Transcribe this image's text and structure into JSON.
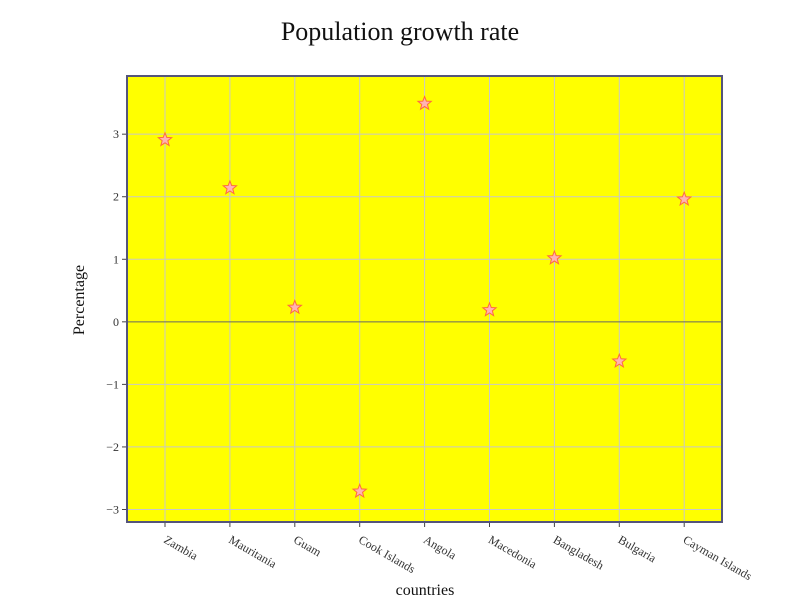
{
  "chart_data": {
    "type": "scatter",
    "title": "Population growth rate",
    "xlabel": "countries",
    "ylabel": "Percentage",
    "categories": [
      "Zambia",
      "Mauritania",
      "Guam",
      "Cook Islands",
      "Angola",
      "Macedonia",
      "Bangladesh",
      "Bulgaria",
      "Cayman Islands"
    ],
    "series": [
      {
        "values": [
          2.91,
          2.14,
          0.23,
          -2.71,
          3.49,
          0.19,
          1.02,
          -0.63,
          1.96
        ]
      }
    ],
    "ylim": [
      -3.2,
      3.93
    ],
    "yticks": [
      -3,
      -2,
      -1,
      0,
      1,
      2,
      3
    ],
    "ytick_labels": [
      "−3",
      "−2",
      "−1",
      "0",
      "1",
      "2",
      "3"
    ],
    "grid": true,
    "legend": "none",
    "colors": {
      "plot_background": "#ffff00",
      "marker_fill": "#ffb3b3",
      "marker_stroke": "#ff6b3d",
      "grid": "#c8c8c8",
      "zero_line": "#666666",
      "frame": "#55557a"
    },
    "marker": "star"
  }
}
